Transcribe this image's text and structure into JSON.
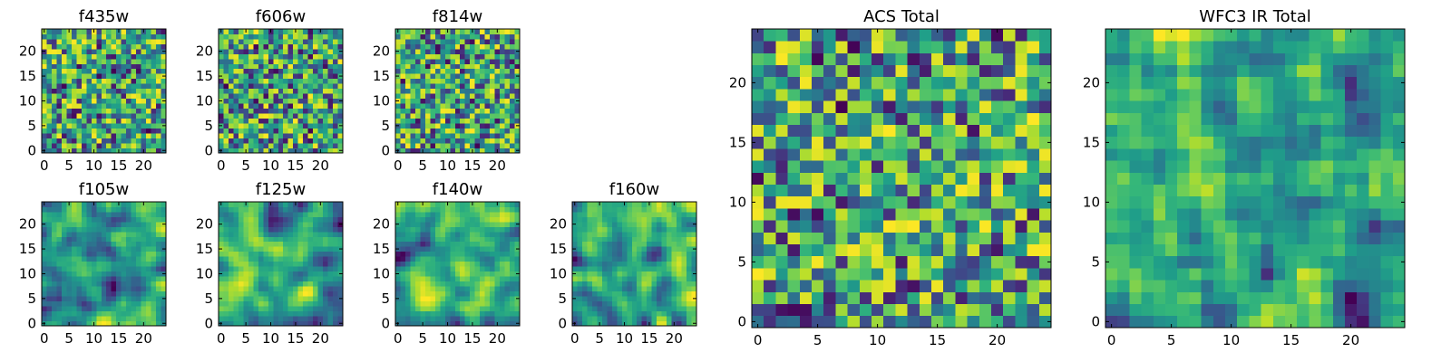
{
  "chart_data": [
    {
      "type": "heatmap",
      "title": "f435w",
      "grid_size": 25,
      "colormap": "viridis",
      "seed": 11,
      "smooth": 0,
      "xticks": [
        0,
        5,
        10,
        15,
        20
      ],
      "yticks": [
        0,
        5,
        10,
        15,
        20
      ],
      "xlim": [
        0,
        24
      ],
      "ylim": [
        0,
        24
      ]
    },
    {
      "type": "heatmap",
      "title": "f606w",
      "grid_size": 25,
      "colormap": "viridis",
      "seed": 23,
      "smooth": 0,
      "xticks": [
        0,
        5,
        10,
        15,
        20
      ],
      "yticks": [
        0,
        5,
        10,
        15,
        20
      ],
      "xlim": [
        0,
        24
      ],
      "ylim": [
        0,
        24
      ]
    },
    {
      "type": "heatmap",
      "title": "f814w",
      "grid_size": 25,
      "colormap": "viridis",
      "seed": 37,
      "smooth": 0,
      "xticks": [
        0,
        5,
        10,
        15,
        20
      ],
      "yticks": [
        0,
        5,
        10,
        15,
        20
      ],
      "xlim": [
        0,
        24
      ],
      "ylim": [
        0,
        24
      ]
    },
    {
      "type": "heatmap",
      "title": "f105w",
      "grid_size": 25,
      "colormap": "viridis",
      "seed": 41,
      "smooth": 2,
      "xticks": [
        0,
        5,
        10,
        15,
        20
      ],
      "yticks": [
        0,
        5,
        10,
        15,
        20
      ],
      "xlim": [
        0,
        24
      ],
      "ylim": [
        0,
        24
      ]
    },
    {
      "type": "heatmap",
      "title": "f125w",
      "grid_size": 25,
      "colormap": "viridis",
      "seed": 53,
      "smooth": 2,
      "xticks": [
        0,
        5,
        10,
        15,
        20
      ],
      "yticks": [
        0,
        5,
        10,
        15,
        20
      ],
      "xlim": [
        0,
        24
      ],
      "ylim": [
        0,
        24
      ]
    },
    {
      "type": "heatmap",
      "title": "f140w",
      "grid_size": 25,
      "colormap": "viridis",
      "seed": 67,
      "smooth": 2,
      "xticks": [
        0,
        5,
        10,
        15,
        20
      ],
      "yticks": [
        0,
        5,
        10,
        15,
        20
      ],
      "xlim": [
        0,
        24
      ],
      "ylim": [
        0,
        24
      ]
    },
    {
      "type": "heatmap",
      "title": "f160w",
      "grid_size": 25,
      "colormap": "viridis",
      "seed": 79,
      "smooth": 2,
      "xticks": [
        0,
        5,
        10,
        15,
        20
      ],
      "yticks": [
        0,
        5,
        10,
        15,
        20
      ],
      "xlim": [
        0,
        24
      ],
      "ylim": [
        0,
        24
      ]
    },
    {
      "type": "heatmap",
      "title": "ACS Total",
      "grid_size": 25,
      "colormap": "viridis",
      "seed": 97,
      "smooth": 0,
      "xticks": [
        0,
        5,
        10,
        15,
        20
      ],
      "yticks": [
        0,
        5,
        10,
        15,
        20
      ],
      "xlim": [
        0,
        24
      ],
      "ylim": [
        0,
        24
      ]
    },
    {
      "type": "heatmap",
      "title": "WFC3 IR Total",
      "grid_size": 25,
      "colormap": "viridis",
      "seed": 131,
      "smooth": 1,
      "xticks": [
        0,
        5,
        10,
        15,
        20
      ],
      "yticks": [
        0,
        5,
        10,
        15,
        20
      ],
      "xlim": [
        0,
        24
      ],
      "ylim": [
        0,
        24
      ]
    }
  ]
}
